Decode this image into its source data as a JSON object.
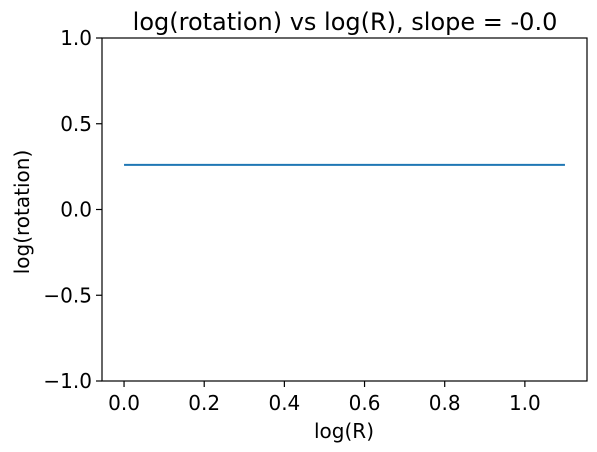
{
  "chart_data": {
    "type": "line",
    "title": "log(rotation) vs log(R), slope = -0.0",
    "xlabel": "log(R)",
    "ylabel": "log(rotation)",
    "xlim": [
      -0.055,
      1.155
    ],
    "ylim": [
      -1.0,
      1.0
    ],
    "xticks": [
      0.0,
      0.2,
      0.4,
      0.6,
      0.8,
      1.0
    ],
    "xtick_labels": [
      "0.0",
      "0.2",
      "0.4",
      "0.6",
      "0.8",
      "1.0"
    ],
    "yticks": [
      -1.0,
      -0.5,
      0.0,
      0.5,
      1.0
    ],
    "ytick_labels": [
      "−1.0",
      "−0.5",
      "0.0",
      "0.5",
      "1.0"
    ],
    "grid": false,
    "series": [
      {
        "color": "#1f77b4",
        "x": [
          0.0,
          1.1
        ],
        "y": [
          0.26,
          0.26
        ]
      }
    ]
  }
}
